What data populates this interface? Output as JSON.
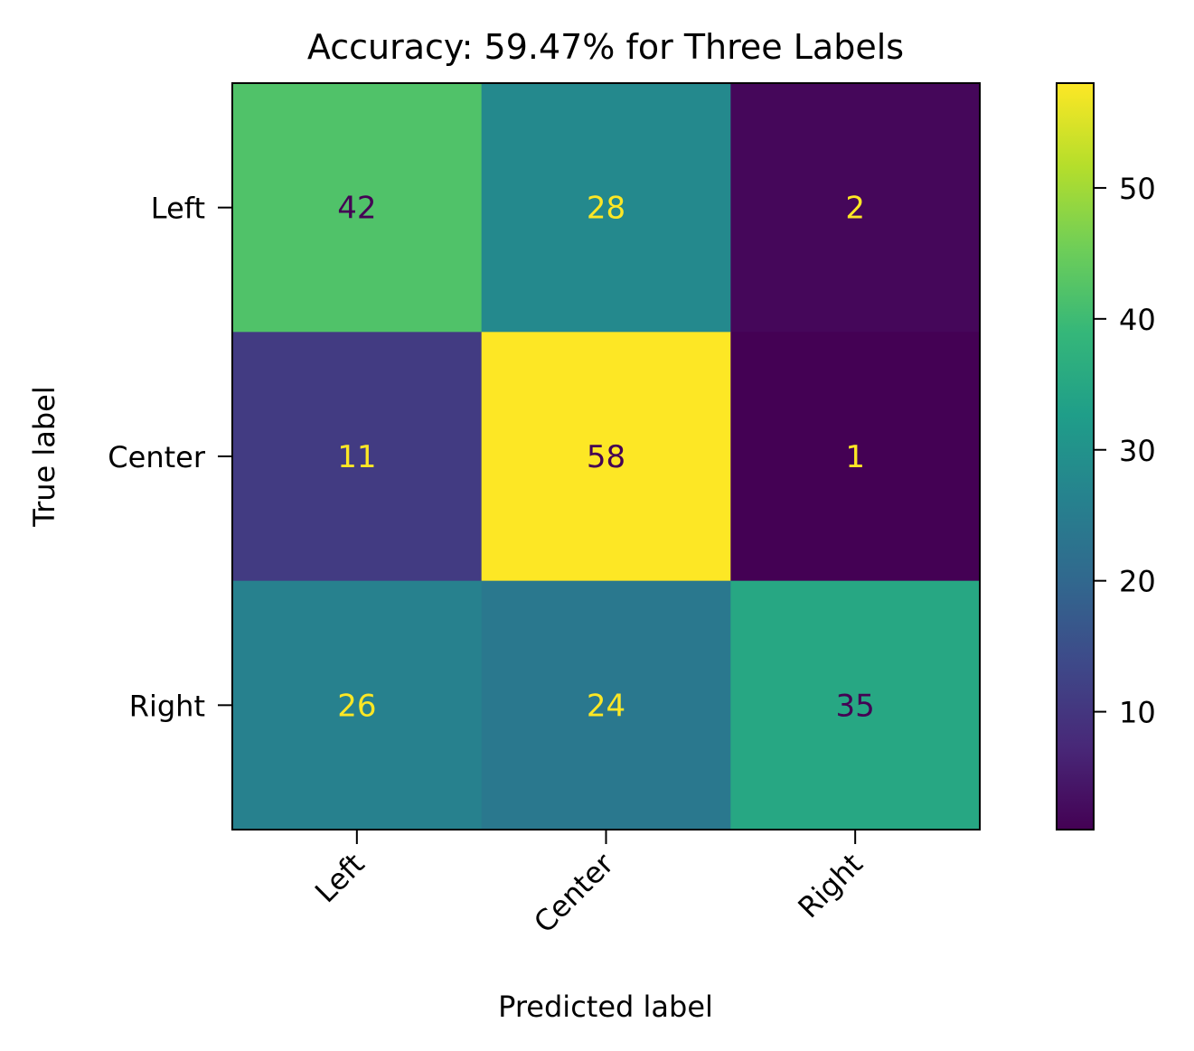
{
  "chart_data": {
    "type": "heatmap",
    "title": "Accuracy: 59.47% for Three Labels",
    "xlabel": "Predicted label",
    "ylabel": "True label",
    "x_categories": [
      "Left",
      "Center",
      "Right"
    ],
    "y_categories": [
      "Left",
      "Center",
      "Right"
    ],
    "values": [
      [
        42,
        28,
        2
      ],
      [
        11,
        58,
        1
      ],
      [
        26,
        24,
        35
      ]
    ],
    "colormap": "viridis",
    "color_range": [
      1,
      58
    ],
    "colorbar_ticks": [
      10,
      20,
      30,
      40,
      50
    ],
    "text_colors": {
      "on_dark": "#fde725",
      "on_light": "#440154"
    },
    "grid": false
  }
}
